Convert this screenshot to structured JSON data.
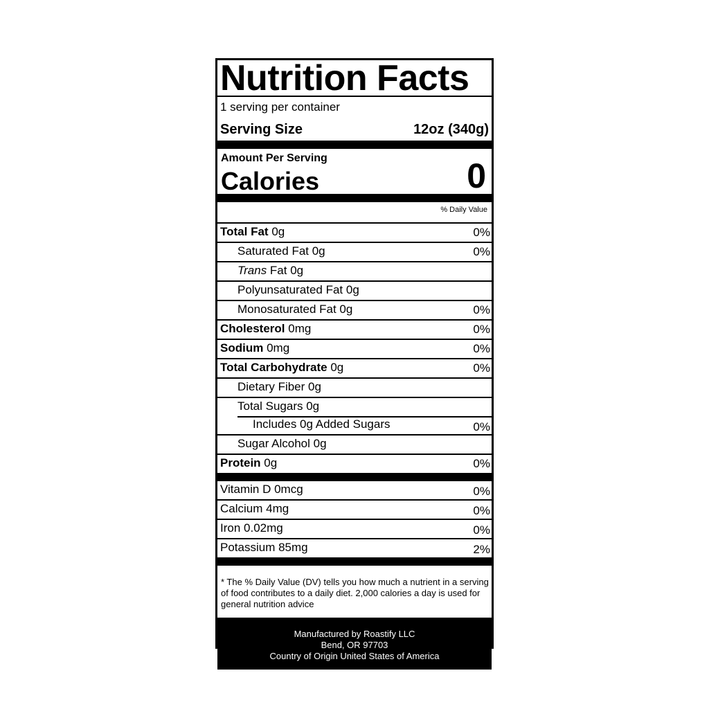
{
  "title": "Nutrition Facts",
  "servings_per_container": "1 serving per container",
  "serving_size_label": "Serving Size",
  "serving_size_value": "12oz (340g)",
  "amount_per_serving": "Amount Per Serving",
  "calories_label": "Calories",
  "calories_value": "0",
  "daily_value_header": "% Daily Value",
  "nutrients": [
    {
      "name": "Total Fat",
      "amount": "0g",
      "dv": "0%"
    },
    {
      "name": "Saturated Fat 0g",
      "dv": "0%"
    },
    {
      "name_italic": "Trans",
      "name": " Fat 0g"
    },
    {
      "name": "Polyunsaturated Fat 0g"
    },
    {
      "name": "Monosaturated Fat 0g",
      "dv": "0%"
    },
    {
      "name": "Cholesterol",
      "amount": "0mg",
      "dv": "0%"
    },
    {
      "name": "Sodium",
      "amount": "0mg",
      "dv": "0%"
    },
    {
      "name": "Total Carbohydrate",
      "amount": " 0g",
      "dv": "0%"
    },
    {
      "name": "Dietary Fiber 0g"
    },
    {
      "name": "Total Sugars 0g"
    },
    {
      "name": "Includes 0g Added Sugars",
      "dv": "0%"
    },
    {
      "name": "Sugar Alcohol 0g"
    },
    {
      "name": "Protein",
      "amount": "0g",
      "dv": "0%"
    }
  ],
  "vitamins": [
    {
      "name": "Vitamin D 0mcg",
      "dv": "0%"
    },
    {
      "name": "Calcium 4mg",
      "dv": "0%"
    },
    {
      "name": "Iron 0.02mg",
      "dv": "0%"
    },
    {
      "name": "Potassium 85mg",
      "dv": "2%"
    }
  ],
  "footnote": "* The % Daily Value (DV) tells you how much a nutrient in a serving of food contributes to a daily diet. 2,000 calories a day is used for general nutrition advice",
  "manufacturer": {
    "line1": "Manufactured by Roastify LLC",
    "line2": "Bend, OR 97703",
    "line3": "Country of Origin United States of America"
  }
}
